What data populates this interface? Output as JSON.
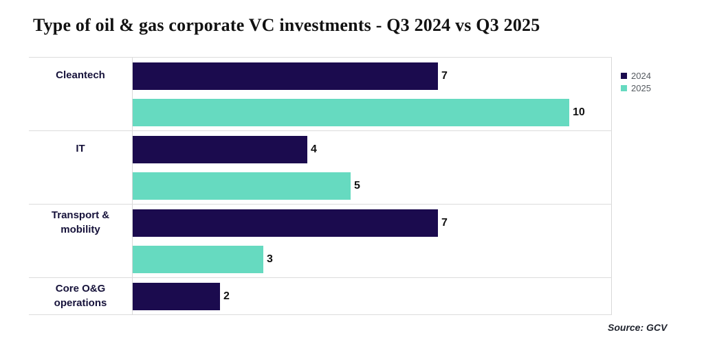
{
  "chart_data": {
    "type": "bar",
    "orientation": "horizontal",
    "title": "Type of oil & gas corporate VC investments - Q3 2024 vs Q3 2025",
    "categories": [
      "Cleantech",
      "IT",
      "Transport & mobility",
      "Core O&G operations"
    ],
    "series": [
      {
        "name": "2024",
        "color": "#1b0b4e",
        "values": [
          7,
          4,
          7,
          2
        ]
      },
      {
        "name": "2025",
        "color": "#66dac0",
        "values": [
          10,
          5,
          3,
          null
        ]
      }
    ],
    "xlim": [
      0,
      11
    ],
    "grid": "category-row-separators",
    "grid_color": "#dcdcdc",
    "legend_position": "right",
    "value_labels": "shown-at-bar-end",
    "source": "Source: GCV"
  }
}
